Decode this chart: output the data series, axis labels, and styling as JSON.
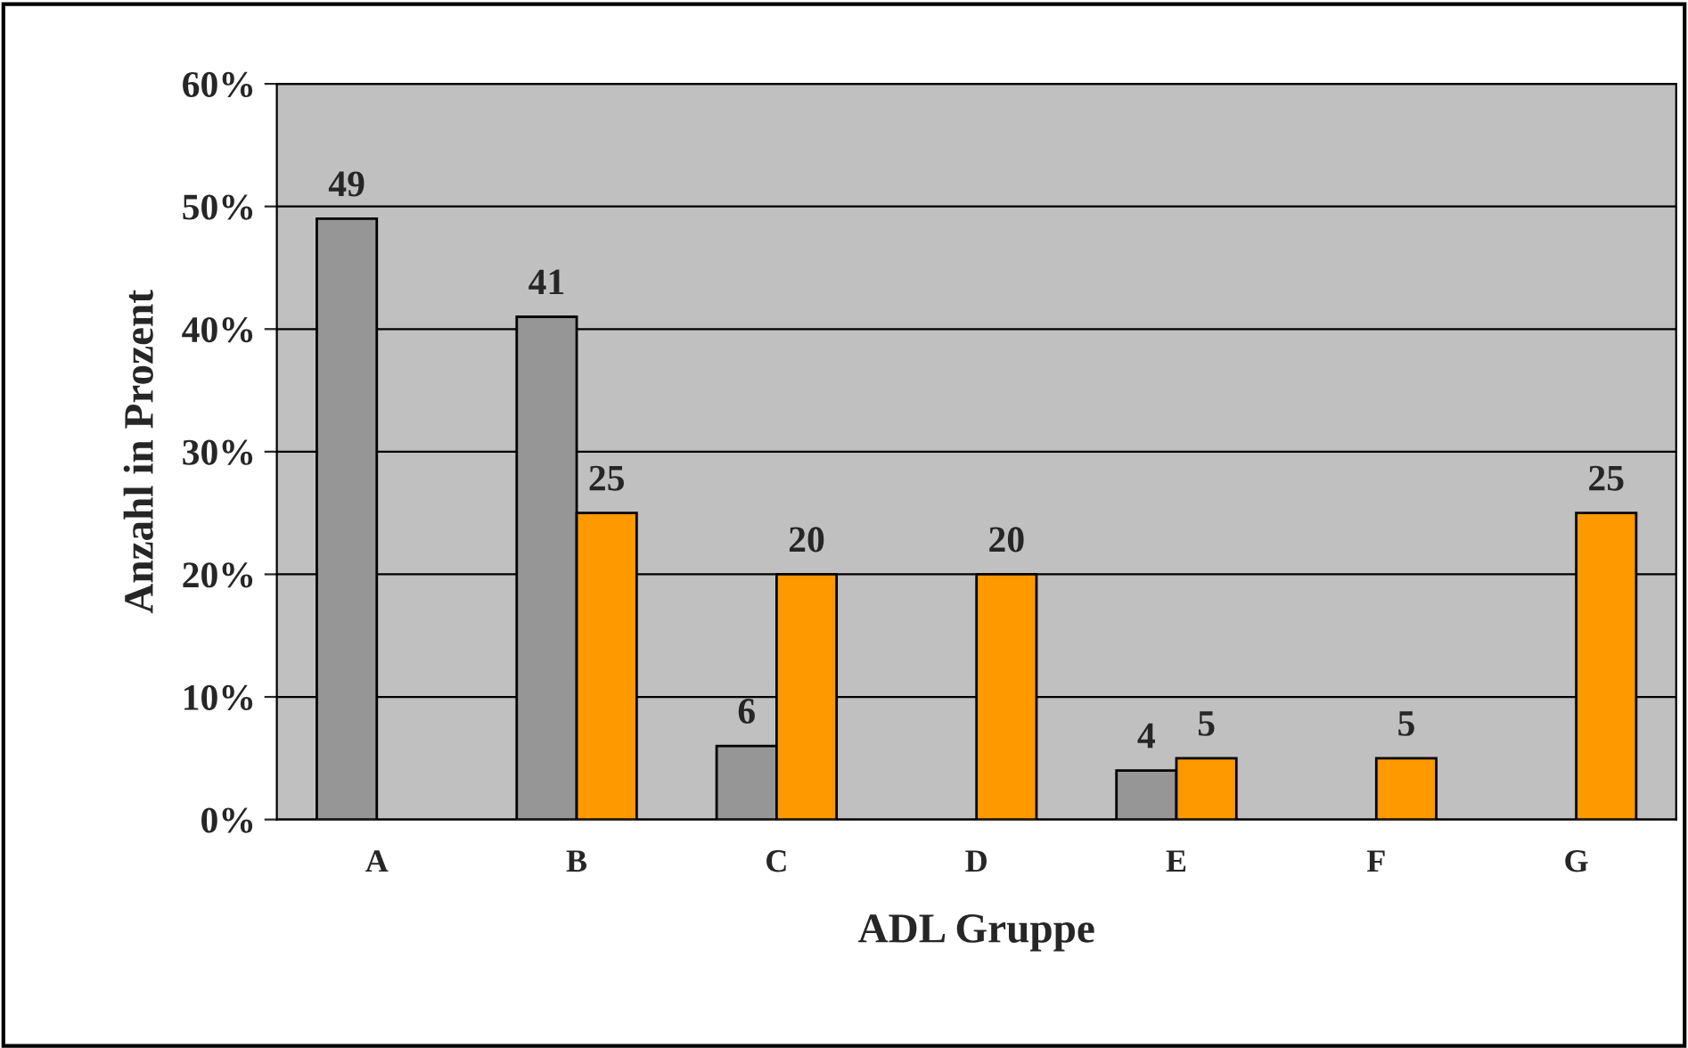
{
  "chart_data": {
    "type": "bar",
    "xlabel": "ADL Gruppe",
    "ylabel": "Anzahl in Prozent",
    "categories": [
      "A",
      "B",
      "C",
      "D",
      "E",
      "F",
      "G"
    ],
    "series": [
      {
        "color": "#969696",
        "values": [
          49,
          41,
          6,
          null,
          4,
          null,
          null
        ]
      },
      {
        "color": "#ff9900",
        "values": [
          null,
          25,
          20,
          20,
          5,
          5,
          25
        ]
      }
    ],
    "ylim": [
      0,
      60
    ],
    "yticks": [
      {
        "value": 0,
        "label": "0%"
      },
      {
        "value": 10,
        "label": "10%"
      },
      {
        "value": 20,
        "label": "20%"
      },
      {
        "value": 30,
        "label": "30%"
      },
      {
        "value": 40,
        "label": "40%"
      },
      {
        "value": 50,
        "label": "50%"
      },
      {
        "value": 60,
        "label": "60%"
      }
    ],
    "grid": "y",
    "data_labels": true,
    "legend": false
  }
}
